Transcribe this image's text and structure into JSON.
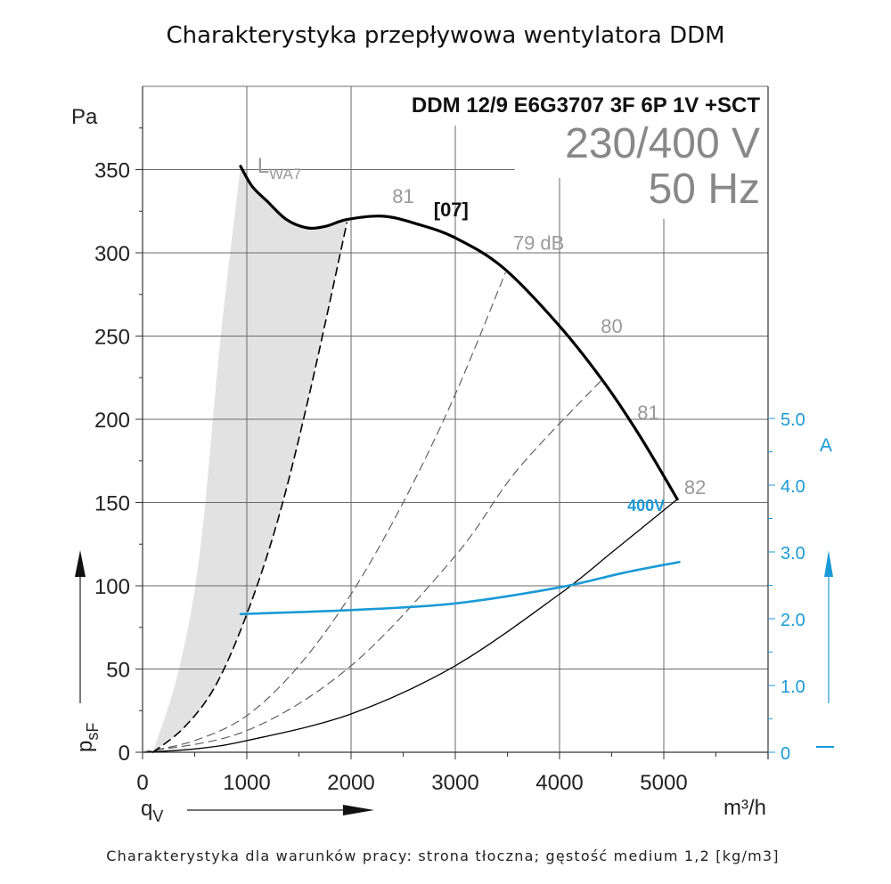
{
  "chart_data": {
    "type": "line",
    "title": "Charakterystyka przepływowa wentylatora DDM",
    "caption": "Charakterystyka dla warunków pracy: strona tłoczna; gęstość medium 1,2 [kg/m3]",
    "model": "DDM 12/9 E6G3707 3F 6P 1V +SCT",
    "voltage": "230/400 V",
    "frequency": "50 Hz",
    "xlabel": "qV",
    "xlabel_main": "q",
    "xlabel_sub": "V",
    "xunit": "m³/h",
    "ylabel_main": "p",
    "ylabel_sub": "sF",
    "yunit": "Pa",
    "y2unit": "A",
    "xlim": [
      0,
      6000
    ],
    "ylim": [
      0,
      400
    ],
    "y2lim": [
      0,
      5.3
    ],
    "grid": true,
    "xticks": [
      0,
      1000,
      2000,
      3000,
      4000,
      5000
    ],
    "xtick_labels": [
      "0",
      "1000",
      "2000",
      "3000",
      "4000",
      "5000"
    ],
    "yticks": [
      0,
      50,
      100,
      150,
      200,
      250,
      300,
      350
    ],
    "ytick_labels": [
      "0",
      "50",
      "100",
      "150",
      "200",
      "250",
      "300",
      "350"
    ],
    "y2ticks": [
      0,
      1.0,
      2.0,
      3.0,
      4.0,
      5.0
    ],
    "y2tick_labels": [
      "0",
      "1.0",
      "2.0",
      "3.0",
      "4.0",
      "5.0"
    ],
    "lwa_label_main": "L",
    "lwa_label_sub": "WA7",
    "speed_label": "[07]",
    "current_label": "400V",
    "series": [
      {
        "name": "pressure [07]",
        "axis": "left",
        "style": "solid-bold",
        "color": "#000000",
        "x": [
          940,
          1050,
          1195,
          1380,
          1580,
          1760,
          1960,
          2310,
          2650,
          3000,
          3460,
          4000,
          4440,
          4780,
          5130
        ],
        "y": [
          352,
          340,
          331,
          320,
          315,
          316,
          320,
          322,
          317,
          309,
          291,
          256,
          221,
          189,
          152
        ]
      },
      {
        "name": "current 400V",
        "axis": "right",
        "style": "solid",
        "color": "#1a9ad6",
        "x": [
          940,
          2000,
          3000,
          4000,
          4620,
          5150
        ],
        "y": [
          2.07,
          2.13,
          2.23,
          2.47,
          2.69,
          2.85
        ]
      },
      {
        "name": "system curve (min)",
        "axis": "left",
        "style": "dashed-bold",
        "color": "#000000",
        "x": [
          100,
          400,
          700,
          1000,
          1300,
          1600,
          1960
        ],
        "y": [
          0,
          15,
          40,
          83,
          140,
          215,
          318
        ]
      },
      {
        "name": "system curve 2",
        "axis": "left",
        "style": "dashed",
        "color": "#555555",
        "x": [
          0,
          500,
          1000,
          1500,
          2000,
          2500,
          3000,
          3480
        ],
        "y": [
          0,
          7,
          22,
          52,
          95,
          150,
          215,
          288
        ]
      },
      {
        "name": "system curve 3",
        "axis": "left",
        "style": "dashed",
        "color": "#555555",
        "x": [
          0,
          1000,
          2000,
          3000,
          3600,
          4410
        ],
        "y": [
          0,
          13,
          52,
          118,
          170,
          224
        ]
      },
      {
        "name": "system curve (max)",
        "axis": "left",
        "style": "solid-thin",
        "color": "#000000",
        "x": [
          0,
          500,
          1000,
          2000,
          3000,
          4000,
          4500,
          5130
        ],
        "y": [
          0,
          2,
          7,
          23,
          52,
          95,
          120,
          152
        ]
      }
    ],
    "shaded_region": {
      "name": "unstable operating range",
      "color": "#e2e2e2",
      "left_edge": {
        "x": [
          100,
          350,
          550,
          750,
          940
        ],
        "y": [
          0,
          50,
          120,
          250,
          352
        ]
      }
    },
    "db_annotations": [
      {
        "label": "81",
        "x": 2500,
        "y": 330
      },
      {
        "label": "79 dB",
        "x": 3800,
        "y": 302
      },
      {
        "label": "80",
        "x": 4500,
        "y": 252
      },
      {
        "label": "81",
        "x": 4850,
        "y": 200
      },
      {
        "label": "82",
        "x": 5300,
        "y": 155
      }
    ],
    "colors": {
      "current": "#1a9ad6",
      "grid": "#666666",
      "shade": "#e2e2e2",
      "db_text": "#999999",
      "voltage_text": "#888888"
    }
  }
}
